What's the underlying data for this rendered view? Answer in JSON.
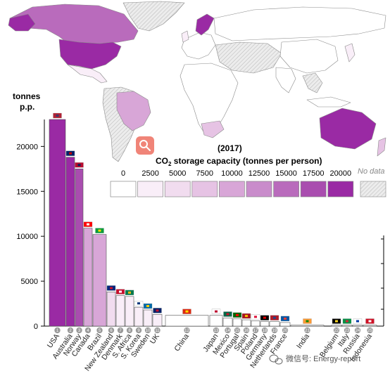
{
  "colors": {
    "scale": [
      "#ffffff",
      "#f9eef8",
      "#f1dcef",
      "#e6c3e4",
      "#d8a6d7",
      "#c98ccb",
      "#b96bbc",
      "#a94daf",
      "#9a2aa4"
    ],
    "no_data": "#e8e8e8",
    "accent": "#9a2aa4",
    "search_icon_bg": "#f08478"
  },
  "map": {
    "year_label": "(2017)",
    "legend_title": "CO",
    "legend_title_sub": "2",
    "legend_title_rest": " storage capacity (tonnes per person)",
    "legend_values": [
      "0",
      "2500",
      "5000",
      "7500",
      "10000",
      "12500",
      "15000",
      "17500",
      "20000"
    ],
    "no_data_label": "No data"
  },
  "search_icon": "search-icon",
  "watermark": {
    "icon": "wechat-icon",
    "text": "微信号: Energy-report"
  },
  "chart_data": {
    "type": "bar",
    "ylabel_line1": "tonnes",
    "ylabel_line2": "p.p.",
    "ylim": [
      0,
      25000
    ],
    "yticks": [
      "0",
      "5000",
      "10000",
      "15000",
      "20000"
    ],
    "ytick_values": [
      0,
      5000,
      10000,
      15000,
      20000
    ],
    "categories": [
      "USA",
      "Australia",
      "Norway",
      "Canada",
      "Brazil",
      "New Zealand",
      "Denmark",
      "S. Africa",
      "S. Korea",
      "Sweden",
      "UK",
      "China",
      "Japan",
      "Mexico",
      "Portugal",
      "Spain",
      "Poland",
      "Germany",
      "Netherlands",
      "France",
      "India",
      "Belgium",
      "Italy",
      "Russia",
      "Indonesia"
    ],
    "ranks": [
      "1",
      "2",
      "3",
      "4",
      "5",
      "6",
      "7",
      "8",
      "9",
      "10",
      "11",
      "12",
      "13",
      "14",
      "15",
      "16",
      "17",
      "18",
      "19",
      "20",
      "21",
      "22",
      "23",
      "24",
      "25"
    ],
    "values": [
      23000,
      18800,
      17500,
      10900,
      10200,
      3800,
      3400,
      3300,
      2100,
      1800,
      1300,
      1200,
      1200,
      900,
      800,
      700,
      600,
      500,
      500,
      400,
      100,
      100,
      100,
      100,
      100
    ],
    "flags": [
      "us-flag-icon",
      "au-flag-icon",
      "no-flag-icon",
      "ca-flag-icon",
      "br-flag-icon",
      "nz-flag-icon",
      "dk-flag-icon",
      "za-flag-icon",
      "kr-flag-icon",
      "se-flag-icon",
      "gb-flag-icon",
      "cn-flag-icon",
      "jp-flag-icon",
      "mx-flag-icon",
      "pt-flag-icon",
      "es-flag-icon",
      "pl-flag-icon",
      "de-flag-icon",
      "nl-flag-icon",
      "fr-flag-icon",
      "in-flag-icon",
      "be-flag-icon",
      "it-flag-icon",
      "ru-flag-icon",
      "id-flag-icon"
    ],
    "grid": false
  }
}
